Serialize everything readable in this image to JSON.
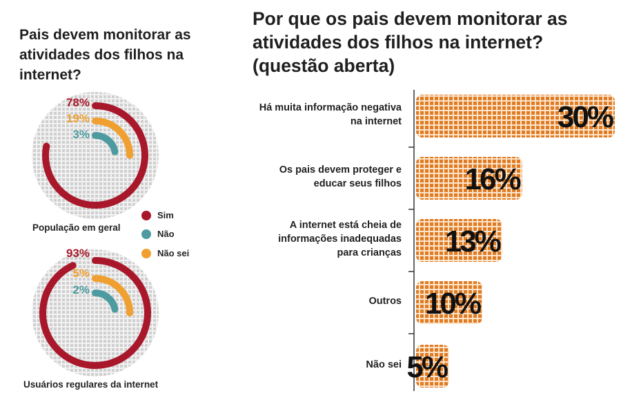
{
  "left": {
    "title": "Pais devem monitorar as atividades dos filhos na internet?",
    "legend": [
      {
        "label": "Sim",
        "color": "#a8172a"
      },
      {
        "label": "Não",
        "color": "#4d9ba0"
      },
      {
        "label": "Não sei",
        "color": "#f0a030"
      }
    ]
  },
  "right": {
    "title": "Por que os pais devem monitorar as atividades dos filhos na internet? (questão aberta)"
  },
  "chart_data": [
    {
      "type": "radial-bar",
      "caption": "População em geral",
      "series": [
        {
          "name": "Sim",
          "value": 78,
          "label": "78%",
          "color": "#a8172a"
        },
        {
          "name": "Não sei",
          "value": 19,
          "label": "19%",
          "color": "#f0a030"
        },
        {
          "name": "Não",
          "value": 3,
          "label": "3%",
          "color": "#4d9ba0"
        }
      ]
    },
    {
      "type": "radial-bar",
      "caption": "Usuários regulares da internet",
      "series": [
        {
          "name": "Sim",
          "value": 93,
          "label": "93%",
          "color": "#a8172a"
        },
        {
          "name": "Não sei",
          "value": 5,
          "label": "5%",
          "color": "#f0a030"
        },
        {
          "name": "Não",
          "value": 2,
          "label": "2%",
          "color": "#4d9ba0"
        }
      ]
    },
    {
      "type": "bar",
      "orientation": "horizontal",
      "categories": [
        "Há muita informação negativa na internet",
        "Os pais devem proteger e educar seus filhos",
        "A internet está cheia de informações inadequadas para crianças",
        "Outros",
        "Não sei"
      ],
      "category_lines": [
        [
          "Há muita informação negativa",
          "na internet"
        ],
        [
          "Os pais devem proteger e",
          "educar seus filhos"
        ],
        [
          "A internet está cheia de",
          "informações inadequadas",
          "para crianças"
        ],
        [
          "Outros"
        ],
        [
          "Não sei"
        ]
      ],
      "values": [
        30,
        16,
        13,
        10,
        5
      ],
      "labels": [
        "30%",
        "16%",
        "13%",
        "10%",
        "5%"
      ],
      "color": "#e07b22"
    }
  ]
}
